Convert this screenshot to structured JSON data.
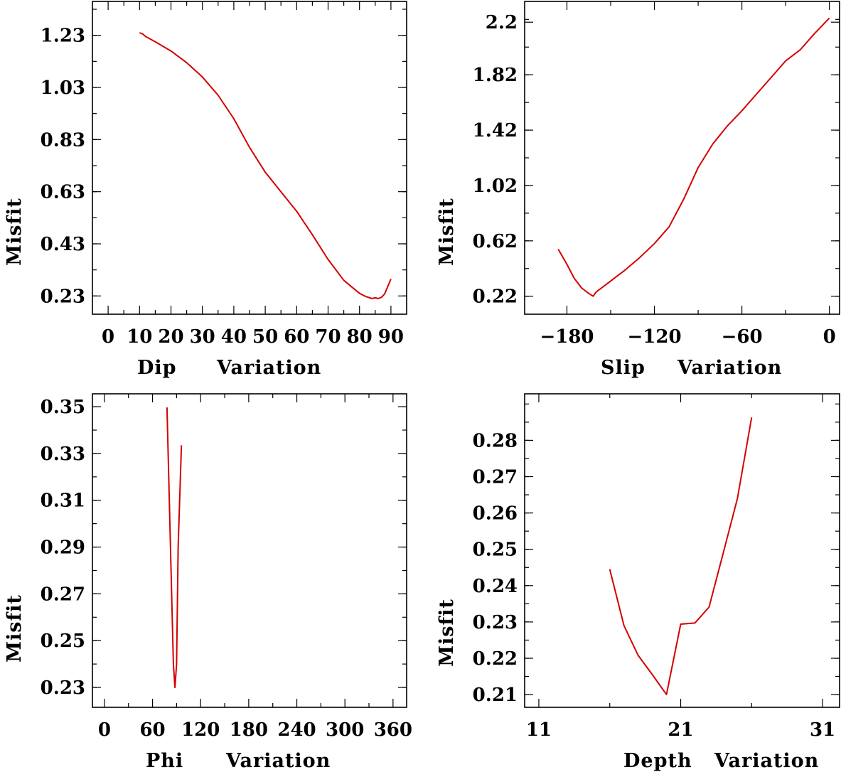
{
  "colors": {
    "curve": "#d40000",
    "axis": "#000000"
  },
  "chart_data": [
    {
      "id": "dip",
      "type": "line",
      "title": "",
      "xlabel_parts": [
        "Dip",
        "Variation"
      ],
      "ylabel": "Misfit",
      "xlim": [
        -5,
        95
      ],
      "ylim": [
        0.16,
        1.36
      ],
      "xticks": [
        0,
        10,
        20,
        30,
        40,
        50,
        60,
        70,
        80,
        90
      ],
      "xticklabels": [
        "0",
        "10",
        "20",
        "30",
        "40",
        "50",
        "60",
        "70",
        "80",
        "90"
      ],
      "yticks": [
        0.23,
        0.43,
        0.63,
        0.83,
        1.03,
        1.23
      ],
      "yticklabels": [
        "0.23",
        "0.43",
        "0.63",
        "0.83",
        "1.03",
        "1.23"
      ],
      "x": [
        10,
        11,
        12,
        15,
        20,
        25,
        30,
        35,
        40,
        45,
        50,
        55,
        60,
        65,
        70,
        75,
        80,
        82,
        84,
        85,
        86,
        87,
        88,
        90
      ],
      "y": [
        1.24,
        1.235,
        1.225,
        1.205,
        1.17,
        1.125,
        1.07,
        1.0,
        0.91,
        0.8,
        0.705,
        0.63,
        0.555,
        0.465,
        0.37,
        0.29,
        0.24,
        0.228,
        0.22,
        0.223,
        0.22,
        0.225,
        0.238,
        0.295
      ]
    },
    {
      "id": "slip",
      "type": "line",
      "title": "",
      "xlabel_parts": [
        "Slip",
        "Variation"
      ],
      "ylabel": "Misfit",
      "xlim": [
        -209,
        7
      ],
      "ylim": [
        0.09,
        2.35
      ],
      "xticks": [
        -180,
        -120,
        -60,
        0
      ],
      "xticklabels": [
        "−180",
        "−120",
        "−60",
        "0"
      ],
      "yticks": [
        0.22,
        0.62,
        1.02,
        1.42,
        1.82,
        2.2
      ],
      "yticklabels": [
        "0.22",
        "0.62",
        "1.02",
        "1.42",
        "1.82",
        "2.2"
      ],
      "x": [
        -186,
        -180,
        -175,
        -170,
        -165,
        -162,
        -160,
        -155,
        -150,
        -140,
        -130,
        -120,
        -110,
        -100,
        -90,
        -80,
        -70,
        -60,
        -50,
        -40,
        -30,
        -20,
        -10,
        0
      ],
      "y": [
        0.56,
        0.45,
        0.35,
        0.28,
        0.24,
        0.22,
        0.25,
        0.29,
        0.33,
        0.41,
        0.5,
        0.6,
        0.72,
        0.92,
        1.15,
        1.32,
        1.45,
        1.56,
        1.68,
        1.8,
        1.92,
        2.0,
        2.12,
        2.23
      ]
    },
    {
      "id": "phi",
      "type": "line",
      "title": "",
      "xlabel_parts": [
        "Phi",
        "Variation"
      ],
      "ylabel": "Misfit",
      "xlim": [
        -15,
        377
      ],
      "ylim": [
        0.2215,
        0.3555
      ],
      "xticks": [
        0,
        60,
        120,
        180,
        240,
        300,
        360
      ],
      "xticklabels": [
        "0",
        "60",
        "120",
        "180",
        "240",
        "300",
        "360"
      ],
      "yticks": [
        0.23,
        0.25,
        0.27,
        0.29,
        0.31,
        0.33,
        0.35
      ],
      "yticklabels": [
        "0.23",
        "0.25",
        "0.27",
        "0.29",
        "0.31",
        "0.33",
        "0.35"
      ],
      "x": [
        78,
        82,
        86,
        88,
        90,
        92,
        96
      ],
      "y": [
        0.3497,
        0.295,
        0.24,
        0.23,
        0.24,
        0.29,
        0.3335
      ]
    },
    {
      "id": "depth",
      "type": "line",
      "title": "",
      "xlabel_parts": [
        "Depth",
        "Variation"
      ],
      "ylabel": "Misfit",
      "xlim": [
        10,
        32.2
      ],
      "ylim": [
        0.2065,
        0.2928
      ],
      "xticks": [
        11,
        21,
        31
      ],
      "xticklabels": [
        "11",
        "21",
        "31"
      ],
      "yticks": [
        0.21,
        0.22,
        0.23,
        0.24,
        0.25,
        0.26,
        0.27,
        0.28
      ],
      "yticklabels": [
        "0.21",
        "0.22",
        "0.23",
        "0.24",
        "0.25",
        "0.26",
        "0.27",
        "0.28"
      ],
      "x": [
        16,
        17,
        18,
        19,
        20,
        21,
        22,
        23,
        24,
        25,
        26
      ],
      "y": [
        0.2445,
        0.229,
        0.2208,
        0.2155,
        0.21,
        0.2294,
        0.2297,
        0.2341,
        0.249,
        0.264,
        0.2863
      ]
    }
  ]
}
